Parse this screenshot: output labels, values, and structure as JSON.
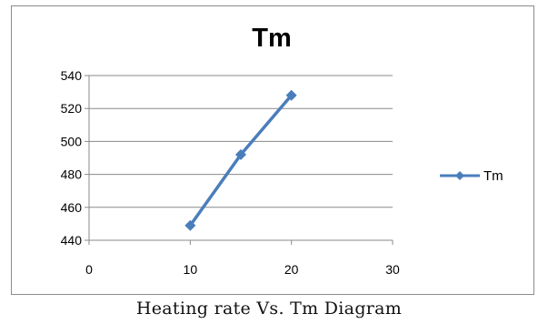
{
  "caption": "Heating rate Vs. Tm Diagram",
  "chart_data": {
    "type": "line",
    "title": "Tm",
    "xlabel": "",
    "ylabel": "",
    "x_ticks": [
      0,
      10,
      20,
      30
    ],
    "y_ticks": [
      440,
      460,
      480,
      500,
      520,
      540
    ],
    "xlim": [
      0,
      30
    ],
    "ylim": [
      440,
      540
    ],
    "grid": "horizontal",
    "legend": "right",
    "series": [
      {
        "name": "Tm",
        "color": "#4a7ebb",
        "marker": "diamond",
        "x": [
          10,
          15,
          20
        ],
        "y": [
          449,
          492,
          528
        ]
      }
    ]
  }
}
